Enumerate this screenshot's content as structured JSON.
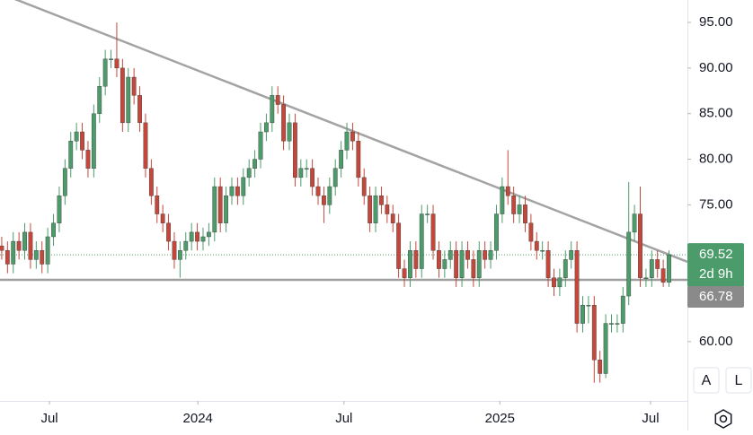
{
  "chart_data": {
    "type": "candlestick",
    "up_color": "#4c9b6a",
    "down_color": "#c4473b",
    "xlim": [
      -0.3,
      119.2
    ],
    "xticks": [
      {
        "value": 8.3,
        "label": "Jul"
      },
      {
        "value": 34.1,
        "label": "2024"
      },
      {
        "value": 59.5,
        "label": "Jul"
      },
      {
        "value": 86.6,
        "label": "2025"
      },
      {
        "value": 112.8,
        "label": "Jul"
      }
    ],
    "ylim": [
      53.5,
      97.46
    ],
    "yticks": [
      {
        "value": 60,
        "label": "60.00"
      },
      {
        "value": 65,
        "label": "65.00"
      },
      {
        "value": 70,
        "label": "70.00"
      },
      {
        "value": 75,
        "label": "75.00"
      },
      {
        "value": 80,
        "label": "80.00"
      },
      {
        "value": 85,
        "label": "85.00"
      },
      {
        "value": 90,
        "label": "90.00"
      },
      {
        "value": 95,
        "label": "95.00"
      }
    ],
    "open": [
      70.5,
      70,
      68.5,
      71,
      70,
      72,
      69,
      70,
      68.5,
      71.5,
      73,
      76,
      79,
      82,
      83,
      81,
      79,
      85,
      88,
      91,
      91,
      90,
      84,
      89,
      87,
      84,
      79,
      76,
      74,
      73,
      71,
      69,
      70,
      71,
      72,
      71,
      71.5,
      72,
      77,
      73,
      76,
      77,
      76,
      78,
      79,
      80,
      83,
      84,
      87,
      86,
      82,
      84,
      78,
      79,
      79,
      77,
      76,
      75,
      77,
      79,
      81,
      83,
      82,
      78,
      76,
      73,
      76,
      75,
      74,
      73,
      68,
      67,
      70,
      68,
      74,
      74,
      70,
      68,
      69,
      70,
      67,
      70,
      69,
      67,
      70,
      69,
      70,
      74,
      77,
      76,
      74,
      75,
      73,
      71,
      70,
      70,
      67,
      66,
      67,
      69,
      70,
      62,
      64,
      64,
      58,
      56.5,
      62,
      62,
      62,
      65,
      72,
      74,
      67,
      67,
      69,
      68,
      66.5
    ],
    "high": [
      71.5,
      71,
      72,
      72,
      73,
      73,
      71,
      71,
      72.5,
      74,
      77,
      80,
      83,
      84,
      84,
      82,
      86,
      89,
      92,
      92,
      95,
      91,
      90,
      90,
      88,
      85,
      80,
      77,
      75,
      74,
      72,
      71,
      72,
      73,
      73,
      72.5,
      73,
      78,
      78,
      77,
      78,
      78,
      79,
      80,
      81,
      84,
      85,
      88,
      88,
      87,
      85,
      85,
      80,
      80,
      80,
      78,
      77,
      78,
      80,
      82,
      84,
      84,
      83,
      79,
      77,
      77,
      77,
      76,
      75,
      74,
      69,
      71,
      71,
      75,
      75,
      75,
      71,
      70,
      71,
      71,
      71,
      71,
      70,
      71,
      71,
      71,
      75,
      78,
      81,
      77,
      76,
      76,
      74,
      72,
      71,
      71,
      68,
      68,
      70,
      71,
      71,
      65,
      65,
      65,
      59,
      63,
      63,
      63,
      66,
      77.5,
      75,
      77,
      68,
      70,
      70,
      69,
      70
    ],
    "low": [
      69,
      67.5,
      67.5,
      69,
      69,
      68,
      68,
      67.5,
      67.5,
      70.5,
      72,
      75,
      78,
      81,
      80,
      78,
      78,
      84,
      87,
      90,
      89,
      83,
      83,
      86,
      83,
      78,
      75,
      73,
      72,
      70,
      68,
      67,
      69,
      70,
      70,
      70,
      70.5,
      71,
      72,
      72,
      75,
      75,
      75,
      77,
      78,
      79,
      82,
      83,
      85,
      81,
      81,
      77,
      77,
      78,
      76,
      75,
      73,
      74,
      76,
      78,
      80,
      81,
      77,
      75,
      72,
      72,
      74,
      73,
      72,
      67,
      66,
      66,
      67,
      67,
      73,
      69,
      67,
      67,
      68,
      66,
      66,
      68,
      66,
      66,
      68,
      68,
      69,
      73,
      75,
      73,
      73,
      72,
      70,
      69,
      69,
      66,
      65,
      65,
      66,
      68,
      61,
      61,
      62,
      55.5,
      55.5,
      56,
      61,
      61,
      61,
      64,
      71,
      66,
      66,
      66,
      67,
      66,
      66
    ],
    "close": [
      70,
      68.5,
      71,
      70,
      72,
      69,
      70,
      68.5,
      71.5,
      73,
      76,
      79,
      82,
      83,
      81,
      79,
      85,
      88,
      91,
      91,
      90,
      84,
      89,
      87,
      84,
      79,
      76,
      74,
      73,
      71,
      69,
      70,
      71,
      72,
      71,
      71.5,
      72,
      77,
      73,
      76,
      77,
      76,
      78,
      79,
      80,
      83,
      84,
      87,
      86,
      82,
      84,
      78,
      79,
      79,
      77,
      76,
      75,
      77,
      79,
      81,
      83,
      82,
      78,
      76,
      73,
      76,
      75,
      74,
      73,
      68,
      67,
      70,
      68,
      74,
      74,
      70,
      68,
      69,
      70,
      67,
      70,
      69,
      67,
      70,
      69,
      70,
      74,
      77,
      76,
      74,
      75,
      73,
      71,
      70,
      70,
      67,
      66,
      67,
      69,
      70,
      62,
      64,
      64,
      58,
      56.5,
      62,
      62,
      62,
      65,
      72,
      74,
      67,
      67,
      69,
      68,
      66.5,
      69.52
    ],
    "trendline": [
      98.2,
      68.75
    ],
    "support": 66.78,
    "countdown": "2d 9h",
    "buttons": [
      "A",
      "L"
    ]
  }
}
